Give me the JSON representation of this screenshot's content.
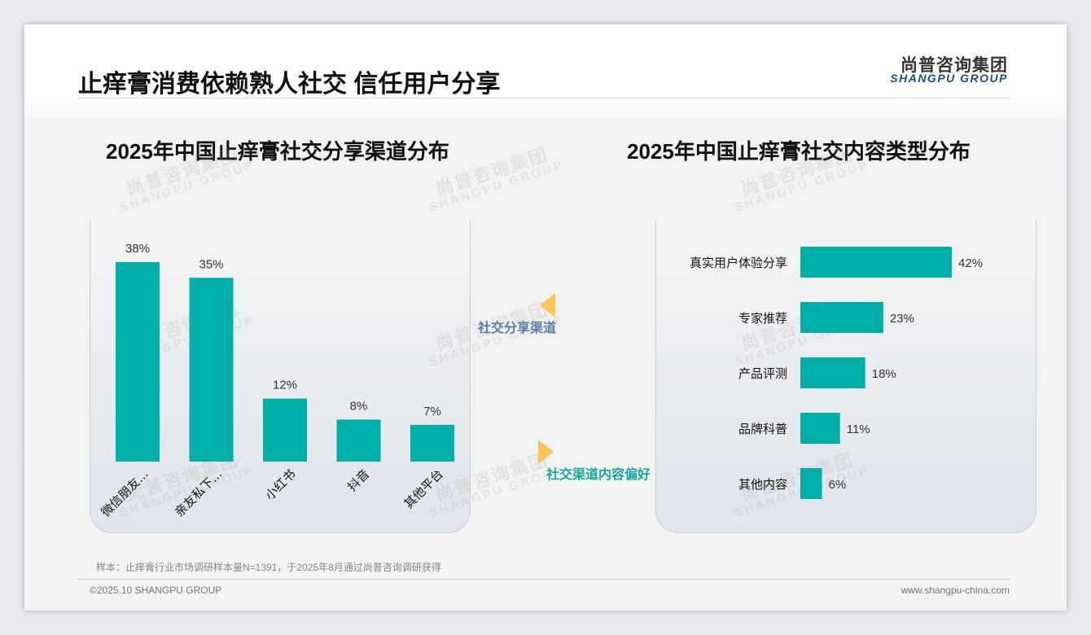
{
  "header": {
    "title": "止痒膏消费依赖熟人社交 信任用户分享",
    "logo_cn": "尚普咨询集团",
    "logo_en": "SHANGPU GROUP"
  },
  "watermark": {
    "cn": "尚普咨询集团",
    "en": "SHANGPU GROUP"
  },
  "connectors": {
    "top": "社交分享渠道",
    "bottom": "社交渠道内容偏好",
    "arrow_color": "#f9c65a",
    "top_color": "#5b7fa6",
    "bottom_color": "#17a79c"
  },
  "colors": {
    "bar": "#00b0a8"
  },
  "chart_data": [
    {
      "type": "bar",
      "title": "2025年中国止痒膏社交分享渠道分布",
      "categories": [
        "微信朋友...",
        "亲友私下...",
        "小红书",
        "抖音",
        "其他平台"
      ],
      "values": [
        38,
        35,
        12,
        8,
        7
      ],
      "labels": [
        "38%",
        "35%",
        "12%",
        "8%",
        "7%"
      ],
      "unit": "%",
      "ylim": [
        0,
        40
      ]
    },
    {
      "type": "bar",
      "orientation": "horizontal",
      "title": "2025年中国止痒膏社交内容类型分布",
      "categories": [
        "真实用户体验分享",
        "专家推荐",
        "产品评测",
        "品牌科普",
        "其他内容"
      ],
      "values": [
        42,
        23,
        18,
        11,
        6
      ],
      "labels": [
        "42%",
        "23%",
        "18%",
        "11%",
        "6%"
      ],
      "unit": "%",
      "xlim": [
        0,
        45
      ]
    }
  ],
  "footer": {
    "note": "样本：止痒膏行业市场调研样本量N=1391，于2025年8月通过尚普咨询调研获得",
    "copyright": "©2025.10 SHANGPU GROUP",
    "url": "www.shangpu-china.com"
  }
}
